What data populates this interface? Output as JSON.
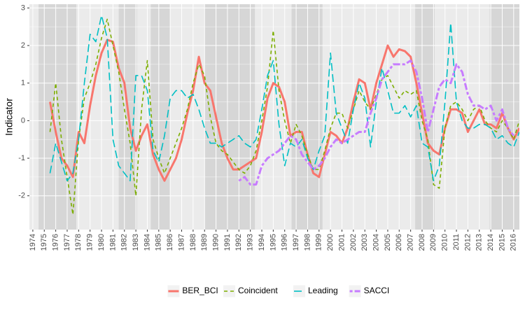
{
  "chart_data": {
    "type": "line",
    "y_label": "Indicator",
    "x": [
      1975.5,
      1976,
      1976.5,
      1977,
      1977.5,
      1978,
      1978.5,
      1979,
      1979.5,
      1980,
      1980.5,
      1981,
      1981.5,
      1982,
      1982.5,
      1983,
      1983.5,
      1984,
      1984.5,
      1985,
      1985.5,
      1986,
      1986.5,
      1987,
      1987.5,
      1988,
      1988.5,
      1989,
      1989.5,
      1990,
      1990.5,
      1991,
      1991.5,
      1992,
      1992.5,
      1993,
      1993.5,
      1994,
      1994.5,
      1995,
      1995.5,
      1996,
      1996.5,
      1997,
      1997.5,
      1998,
      1998.5,
      1999,
      1999.5,
      2000,
      2000.5,
      2001,
      2001.5,
      2002,
      2002.5,
      2003,
      2003.5,
      2004,
      2004.5,
      2005,
      2005.5,
      2006,
      2006.5,
      2007,
      2007.5,
      2008,
      2008.5,
      2009,
      2009.5,
      2010,
      2010.5,
      2011,
      2011.5,
      2012,
      2012.5,
      2013,
      2013.5,
      2014,
      2014.5,
      2015,
      2015.5,
      2016,
      2016.5
    ],
    "series": [
      {
        "name": "BER_BCI",
        "color": "#F8766D",
        "linetype": "solid",
        "width": 3,
        "values": [
          0.5,
          -0.3,
          -1.0,
          -1.2,
          -1.5,
          -0.3,
          -0.6,
          0.4,
          1.2,
          1.8,
          2.15,
          2.1,
          1.4,
          1.0,
          -0.2,
          -0.8,
          -0.4,
          -0.1,
          -0.9,
          -1.3,
          -1.6,
          -1.3,
          -1.0,
          -0.5,
          0.2,
          0.8,
          1.7,
          1.0,
          0.8,
          0.1,
          -0.6,
          -1.0,
          -1.3,
          -1.3,
          -1.2,
          -1.1,
          -1.0,
          -0.3,
          0.6,
          1.0,
          0.9,
          0.5,
          -0.4,
          -0.3,
          -0.3,
          -0.9,
          -1.4,
          -1.5,
          -0.9,
          -0.3,
          -0.4,
          -0.6,
          -0.2,
          0.5,
          1.1,
          1.0,
          0.3,
          1.0,
          1.5,
          2.0,
          1.7,
          1.9,
          1.85,
          1.7,
          1.0,
          0.2,
          -0.6,
          -0.8,
          -0.9,
          -0.2,
          0.3,
          0.3,
          0.2,
          -0.3,
          0.0,
          0.3,
          -0.1,
          -0.1,
          -0.2,
          0.2,
          -0.2,
          -0.5,
          -0.2
        ]
      },
      {
        "name": "Coincident",
        "color": "#7CAE00",
        "linetype": "dashed",
        "width": 1.6,
        "values": [
          -0.3,
          1.0,
          -0.5,
          -1.5,
          -2.5,
          -0.5,
          0.6,
          1.0,
          1.5,
          2.2,
          2.7,
          2.0,
          1.3,
          0.3,
          -0.6,
          -2.0,
          0.3,
          1.6,
          -0.5,
          -1.0,
          -1.4,
          -1.0,
          -0.6,
          -0.2,
          0.3,
          1.0,
          1.5,
          1.2,
          0.1,
          -0.6,
          -0.8,
          -0.9,
          -1.1,
          -1.3,
          -1.4,
          -1.2,
          -0.8,
          0.0,
          0.9,
          2.4,
          0.8,
          0.0,
          -0.6,
          -0.1,
          -0.4,
          -0.9,
          -1.3,
          -1.3,
          -0.8,
          -0.2,
          0.2,
          0.2,
          -0.2,
          0.3,
          0.8,
          0.5,
          0.3,
          0.7,
          1.1,
          1.2,
          0.9,
          0.6,
          0.8,
          0.7,
          0.8,
          0.0,
          -0.5,
          -1.7,
          -1.8,
          -0.2,
          0.4,
          0.5,
          0.3,
          0.0,
          0.3,
          0.4,
          0.0,
          -0.2,
          -0.3,
          0.0,
          -0.2,
          -0.5,
          0.0
        ]
      },
      {
        "name": "Leading",
        "color": "#00BFC4",
        "linetype": "longdash",
        "width": 1.6,
        "values": [
          -1.4,
          -0.6,
          -1.1,
          -1.6,
          -1.4,
          -0.5,
          1.0,
          2.3,
          2.1,
          2.8,
          2.2,
          -0.5,
          -1.2,
          -1.4,
          -1.6,
          1.2,
          1.2,
          0.8,
          -0.8,
          -1.1,
          -0.4,
          0.6,
          0.8,
          0.8,
          0.6,
          0.7,
          0.3,
          -0.2,
          -0.6,
          -0.6,
          -0.7,
          -0.6,
          -0.5,
          -0.4,
          -0.6,
          -0.7,
          -0.5,
          0.3,
          1.2,
          1.6,
          -0.1,
          -1.2,
          -0.6,
          -0.7,
          -0.5,
          -1.0,
          -1.3,
          -0.8,
          -0.4,
          1.8,
          0.2,
          -0.2,
          -0.6,
          0.3,
          1.0,
          0.6,
          -0.7,
          0.5,
          1.4,
          0.8,
          0.2,
          0.2,
          0.4,
          0.1,
          0.4,
          -0.6,
          -0.7,
          -1.6,
          -1.2,
          0.5,
          2.6,
          0.5,
          0.0,
          -0.2,
          -0.2,
          -0.1,
          -0.1,
          -0.2,
          -0.5,
          -0.4,
          -0.6,
          -0.7,
          -0.3
        ]
      },
      {
        "name": "SACCI",
        "color": "#C77CFF",
        "linetype": "twodash",
        "width": 3,
        "values": [
          null,
          null,
          null,
          null,
          null,
          null,
          null,
          null,
          null,
          null,
          null,
          null,
          null,
          null,
          null,
          null,
          null,
          null,
          null,
          null,
          null,
          null,
          null,
          null,
          null,
          null,
          null,
          null,
          null,
          null,
          null,
          null,
          null,
          -1.6,
          -1.5,
          -1.7,
          -1.7,
          -1.2,
          -1.0,
          -0.9,
          -0.8,
          -0.6,
          -0.4,
          -0.5,
          -0.9,
          -1.1,
          -1.3,
          -1.2,
          -1.0,
          -0.7,
          -0.5,
          -0.6,
          -0.5,
          -0.4,
          -0.3,
          -0.3,
          0.2,
          0.6,
          1.1,
          1.3,
          1.5,
          1.5,
          1.5,
          1.6,
          1.3,
          0.6,
          -0.3,
          0.3,
          0.9,
          1.1,
          1.0,
          1.5,
          1.3,
          0.7,
          0.4,
          0.4,
          0.3,
          0.4,
          0.0,
          0.3,
          -0.2,
          -0.4,
          null
        ]
      }
    ],
    "shaded_periods": [
      [
        1974.5,
        1977.8
      ],
      [
        1981.5,
        1983.1
      ],
      [
        1984.3,
        1986.0
      ],
      [
        1989.0,
        1993.4
      ],
      [
        1996.6,
        1999.3
      ],
      [
        2007.4,
        2009.1
      ],
      [
        2013.9,
        2016.5
      ]
    ],
    "shade_color": "#d6d6d6",
    "xlim": [
      1973.7,
      2016.5
    ],
    "xticks": [
      1974,
      1975,
      1976,
      1977,
      1978,
      1979,
      1980,
      1981,
      1982,
      1983,
      1984,
      1985,
      1986,
      1987,
      1988,
      1989,
      1990,
      1991,
      1992,
      1993,
      1994,
      1995,
      1996,
      1997,
      1998,
      1999,
      2000,
      2001,
      2002,
      2003,
      2004,
      2005,
      2006,
      2007,
      2008,
      2009,
      2010,
      2011,
      2012,
      2013,
      2014,
      2015,
      2016
    ],
    "ylim": [
      -2.9,
      3.1
    ],
    "yticks": [
      -2,
      -1,
      0,
      1,
      2,
      3
    ],
    "grid": true,
    "legend_position": "bottom"
  }
}
